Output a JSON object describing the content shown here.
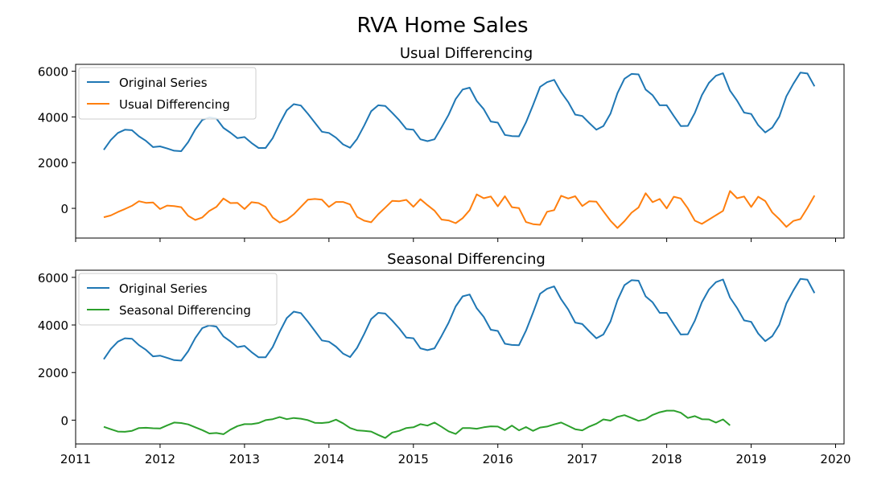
{
  "suptitle": "RVA Home Sales",
  "colors": {
    "original": "#1f77b4",
    "usual_diff": "#ff7f0e",
    "seasonal_diff": "#2ca02c"
  },
  "chart_data": [
    {
      "type": "line",
      "title": "Usual Differencing",
      "xlabel": "",
      "ylabel": "",
      "x_start": "2011-05",
      "xlim": [
        2011.0,
        2020.1
      ],
      "ylim": [
        -1300,
        6300
      ],
      "grid": false,
      "legend": "upper left",
      "xticks": [
        "2011",
        "2012",
        "2013",
        "2014",
        "2015",
        "2016",
        "2017",
        "2018",
        "2019",
        "2020"
      ],
      "yticks": [
        0,
        2000,
        4000,
        6000
      ],
      "show_x_tick_labels": false,
      "series": [
        {
          "name": "Original Series",
          "color": "#1f77b4",
          "values": [
            2560,
            2990,
            3300,
            3440,
            3420,
            3150,
            2950,
            2680,
            2710,
            2620,
            2520,
            2500,
            2900,
            3450,
            3870,
            3980,
            3930,
            3520,
            3310,
            3070,
            3120,
            2860,
            2640,
            2640,
            3070,
            3710,
            4290,
            4560,
            4500,
            4140,
            3750,
            3350,
            3300,
            3090,
            2800,
            2650,
            3040,
            3620,
            4250,
            4510,
            4480,
            4180,
            3850,
            3470,
            3440,
            3020,
            2940,
            3020,
            3540,
            4090,
            4780,
            5200,
            5280,
            4700,
            4340,
            3800,
            3750,
            3210,
            3160,
            3150,
            3760,
            4520,
            5310,
            5520,
            5620,
            5080,
            4650,
            4100,
            4040,
            3730,
            3440,
            3600,
            4140,
            5040,
            5670,
            5880,
            5860,
            5200,
            4950,
            4510,
            4510,
            4040,
            3600,
            3610,
            4180,
            4950,
            5490,
            5800,
            5910,
            5150,
            4710,
            4190,
            4130,
            3640,
            3320,
            3530,
            4010,
            4900,
            5450,
            5940,
            5900,
            5340
          ]
        },
        {
          "name": "Usual Differencing",
          "color": "#ff7f0e",
          "values": [
            -390,
            -310,
            -160,
            -30,
            110,
            310,
            240,
            260,
            -30,
            120,
            100,
            50,
            -330,
            -510,
            -400,
            -110,
            60,
            430,
            230,
            240,
            -30,
            270,
            230,
            60,
            -400,
            -620,
            -500,
            -260,
            60,
            380,
            410,
            380,
            60,
            280,
            280,
            170,
            -370,
            -540,
            -610,
            -260,
            30,
            330,
            310,
            370,
            70,
            400,
            140,
            -100,
            -490,
            -530,
            -650,
            -430,
            -80,
            610,
            440,
            520,
            90,
            530,
            50,
            10,
            -600,
            -690,
            -720,
            -150,
            -80,
            550,
            430,
            530,
            100,
            310,
            290,
            -130,
            -540,
            -860,
            -560,
            -190,
            40,
            660,
            270,
            410,
            0,
            510,
            430,
            0,
            -540,
            -680,
            -490,
            -300,
            -110,
            760,
            440,
            520,
            60,
            510,
            320,
            -180,
            -470,
            -810,
            -550,
            -470,
            20,
            560
          ]
        }
      ]
    },
    {
      "type": "line",
      "title": "Seasonal Differencing",
      "xlabel": "",
      "ylabel": "",
      "x_start": "2011-05",
      "xlim": [
        2011.0,
        2020.1
      ],
      "ylim": [
        -1000,
        6300
      ],
      "grid": false,
      "legend": "upper left",
      "xticks": [
        "2011",
        "2012",
        "2013",
        "2014",
        "2015",
        "2016",
        "2017",
        "2018",
        "2019",
        "2020"
      ],
      "yticks": [
        0,
        2000,
        4000,
        6000
      ],
      "show_x_tick_labels": true,
      "series": [
        {
          "name": "Original Series",
          "color": "#1f77b4",
          "values": [
            2560,
            2990,
            3300,
            3440,
            3420,
            3150,
            2950,
            2680,
            2710,
            2620,
            2520,
            2500,
            2900,
            3450,
            3870,
            3980,
            3930,
            3520,
            3310,
            3070,
            3120,
            2860,
            2640,
            2640,
            3070,
            3710,
            4290,
            4560,
            4500,
            4140,
            3750,
            3350,
            3300,
            3090,
            2800,
            2650,
            3040,
            3620,
            4250,
            4510,
            4480,
            4180,
            3850,
            3470,
            3440,
            3020,
            2940,
            3020,
            3540,
            4090,
            4780,
            5200,
            5280,
            4700,
            4340,
            3800,
            3750,
            3210,
            3160,
            3150,
            3760,
            4520,
            5310,
            5520,
            5620,
            5080,
            4650,
            4100,
            4040,
            3730,
            3440,
            3600,
            4140,
            5040,
            5670,
            5880,
            5860,
            5200,
            4950,
            4510,
            4510,
            4040,
            3600,
            3610,
            4180,
            4950,
            5490,
            5800,
            5910,
            5150,
            4710,
            4190,
            4130,
            3640,
            3320,
            3530,
            4010,
            4900,
            5450,
            5940,
            5900,
            5340
          ]
        },
        {
          "name": "Seasonal Differencing",
          "color": "#2ca02c",
          "values": [
            -280,
            -380,
            -480,
            -490,
            -450,
            -330,
            -320,
            -340,
            -350,
            -220,
            -100,
            -120,
            -180,
            -300,
            -420,
            -560,
            -540,
            -590,
            -400,
            -250,
            -170,
            -170,
            -120,
            0,
            40,
            130,
            40,
            90,
            60,
            0,
            -110,
            -120,
            -90,
            20,
            -130,
            -330,
            -430,
            -450,
            -480,
            -620,
            -750,
            -520,
            -450,
            -330,
            -300,
            -170,
            -230,
            -100,
            -280,
            -470,
            -580,
            -330,
            -330,
            -360,
            -300,
            -260,
            -270,
            -420,
            -230,
            -430,
            -290,
            -450,
            -310,
            -270,
            -180,
            -100,
            -240,
            -380,
            -430,
            -270,
            -150,
            30,
            -20,
            140,
            210,
            90,
            -30,
            40,
            220,
            330,
            400,
            400,
            310,
            90,
            170,
            40,
            30,
            -100,
            30,
            -220
          ]
        }
      ]
    }
  ]
}
